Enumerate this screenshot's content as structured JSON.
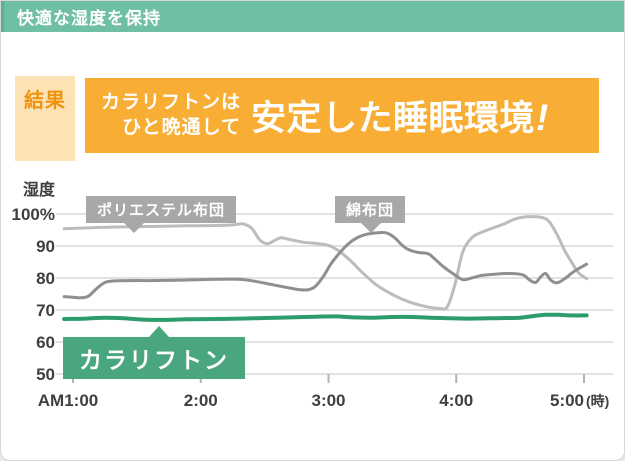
{
  "page": {
    "header": {
      "title": "快適な湿度を保持"
    },
    "result": {
      "tag": "結果",
      "sub_line1": "カラリフトンは",
      "sub_line2": "ひと晩通して",
      "headline": "安定した睡眠環境",
      "headline_bang": "!"
    },
    "colors": {
      "header_teal": "#6fbfa2",
      "banner_orange": "#f8ad35",
      "tag_bg": "#fce3b6",
      "tag_text": "#f0920e",
      "grid": "#d9d9d9",
      "axis_text": "#3f3f3f",
      "tick": "#b3b3b3",
      "gray_label_bg": "#a8a8a8",
      "green_label_bg": "#4aa67e"
    }
  },
  "chart_data": {
    "type": "line",
    "title": "",
    "ylabel": "湿度",
    "xlabel": "",
    "x_unit_suffix": "(時)",
    "grid": true,
    "ylim": [
      50,
      103
    ],
    "xlim": [
      0.93,
      5.05
    ],
    "y_ticks": [
      {
        "v": 100,
        "label": "100%"
      },
      {
        "v": 90,
        "label": "90"
      },
      {
        "v": 80,
        "label": "80"
      },
      {
        "v": 70,
        "label": "70"
      },
      {
        "v": 60,
        "label": "60"
      },
      {
        "v": 50,
        "label": "50"
      }
    ],
    "x_ticks": [
      {
        "t": 1,
        "label": "AM1:00",
        "offset": -5
      },
      {
        "t": 2,
        "label": "2:00",
        "offset": 0
      },
      {
        "t": 3,
        "label": "3:00",
        "offset": 0
      },
      {
        "t": 4,
        "label": "4:00",
        "offset": 0
      },
      {
        "t": 5,
        "label": "5:00",
        "offset": -17
      }
    ],
    "series": [
      {
        "name": "ポリエステル布団",
        "color": "#bcbcbc",
        "width": 3,
        "points": [
          [
            0.93,
            95.4
          ],
          [
            1.0,
            95.5
          ],
          [
            1.3,
            95.9
          ],
          [
            1.6,
            96.1
          ],
          [
            1.9,
            96.3
          ],
          [
            2.1,
            96.4
          ],
          [
            2.25,
            96.6
          ],
          [
            2.33,
            96.9
          ],
          [
            2.4,
            95.5
          ],
          [
            2.46,
            92.0
          ],
          [
            2.52,
            90.7
          ],
          [
            2.58,
            91.8
          ],
          [
            2.63,
            92.6
          ],
          [
            2.7,
            92.0
          ],
          [
            2.8,
            91.2
          ],
          [
            2.9,
            90.8
          ],
          [
            3.0,
            90.2
          ],
          [
            3.08,
            88.5
          ],
          [
            3.17,
            85.5
          ],
          [
            3.27,
            81.5
          ],
          [
            3.37,
            78.0
          ],
          [
            3.47,
            75.5
          ],
          [
            3.57,
            73.5
          ],
          [
            3.67,
            72.0
          ],
          [
            3.77,
            71.0
          ],
          [
            3.87,
            70.5
          ],
          [
            3.93,
            71.0
          ],
          [
            3.99,
            78.0
          ],
          [
            4.05,
            88.0
          ],
          [
            4.12,
            92.5
          ],
          [
            4.2,
            94.3
          ],
          [
            4.3,
            95.8
          ],
          [
            4.38,
            97.0
          ],
          [
            4.45,
            98.3
          ],
          [
            4.52,
            99.0
          ],
          [
            4.6,
            99.2
          ],
          [
            4.68,
            98.8
          ],
          [
            4.73,
            97.5
          ],
          [
            4.79,
            93.5
          ],
          [
            4.85,
            88.5
          ],
          [
            4.91,
            84.5
          ],
          [
            4.96,
            81.5
          ],
          [
            5.02,
            79.8
          ]
        ]
      },
      {
        "name": "綿布団",
        "color": "#8f8f8f",
        "width": 3,
        "points": [
          [
            0.93,
            74.2
          ],
          [
            1.0,
            74.0
          ],
          [
            1.06,
            73.8
          ],
          [
            1.12,
            74.3
          ],
          [
            1.18,
            76.5
          ],
          [
            1.25,
            78.6
          ],
          [
            1.33,
            79.1
          ],
          [
            1.45,
            79.2
          ],
          [
            1.6,
            79.2
          ],
          [
            1.8,
            79.3
          ],
          [
            2.0,
            79.5
          ],
          [
            2.15,
            79.6
          ],
          [
            2.3,
            79.6
          ],
          [
            2.42,
            79.0
          ],
          [
            2.55,
            78.0
          ],
          [
            2.68,
            77.0
          ],
          [
            2.78,
            76.3
          ],
          [
            2.85,
            76.4
          ],
          [
            2.9,
            77.5
          ],
          [
            2.96,
            80.5
          ],
          [
            3.02,
            84.5
          ],
          [
            3.08,
            87.5
          ],
          [
            3.15,
            90.5
          ],
          [
            3.22,
            92.5
          ],
          [
            3.3,
            93.7
          ],
          [
            3.4,
            94.2
          ],
          [
            3.46,
            94.0
          ],
          [
            3.52,
            92.5
          ],
          [
            3.57,
            90.5
          ],
          [
            3.62,
            89.0
          ],
          [
            3.7,
            88.0
          ],
          [
            3.78,
            87.6
          ],
          [
            3.83,
            86.0
          ],
          [
            3.9,
            83.5
          ],
          [
            3.97,
            81.5
          ],
          [
            4.05,
            79.5
          ],
          [
            4.12,
            80.0
          ],
          [
            4.2,
            80.8
          ],
          [
            4.3,
            81.2
          ],
          [
            4.42,
            81.4
          ],
          [
            4.52,
            81.0
          ],
          [
            4.57,
            79.5
          ],
          [
            4.62,
            78.6
          ],
          [
            4.66,
            80.3
          ],
          [
            4.7,
            81.4
          ],
          [
            4.74,
            79.3
          ],
          [
            4.79,
            78.5
          ],
          [
            4.85,
            79.8
          ],
          [
            4.92,
            82.0
          ],
          [
            5.02,
            84.3
          ]
        ]
      },
      {
        "name": "カラリフトン",
        "color": "#2d9c6c",
        "width": 4,
        "points": [
          [
            0.93,
            67.2
          ],
          [
            1.1,
            67.3
          ],
          [
            1.25,
            67.6
          ],
          [
            1.4,
            67.4
          ],
          [
            1.55,
            67.0
          ],
          [
            1.7,
            66.9
          ],
          [
            1.9,
            67.1
          ],
          [
            2.1,
            67.2
          ],
          [
            2.3,
            67.3
          ],
          [
            2.5,
            67.5
          ],
          [
            2.7,
            67.7
          ],
          [
            2.9,
            67.9
          ],
          [
            3.05,
            68.0
          ],
          [
            3.2,
            67.7
          ],
          [
            3.35,
            67.6
          ],
          [
            3.5,
            67.8
          ],
          [
            3.65,
            67.8
          ],
          [
            3.8,
            67.6
          ],
          [
            3.95,
            67.4
          ],
          [
            4.1,
            67.3
          ],
          [
            4.25,
            67.4
          ],
          [
            4.4,
            67.5
          ],
          [
            4.5,
            67.6
          ],
          [
            4.6,
            68.1
          ],
          [
            4.7,
            68.5
          ],
          [
            4.8,
            68.5
          ],
          [
            4.9,
            68.3
          ],
          [
            5.02,
            68.3
          ]
        ]
      }
    ],
    "legend_position": "callouts-on-chart"
  }
}
